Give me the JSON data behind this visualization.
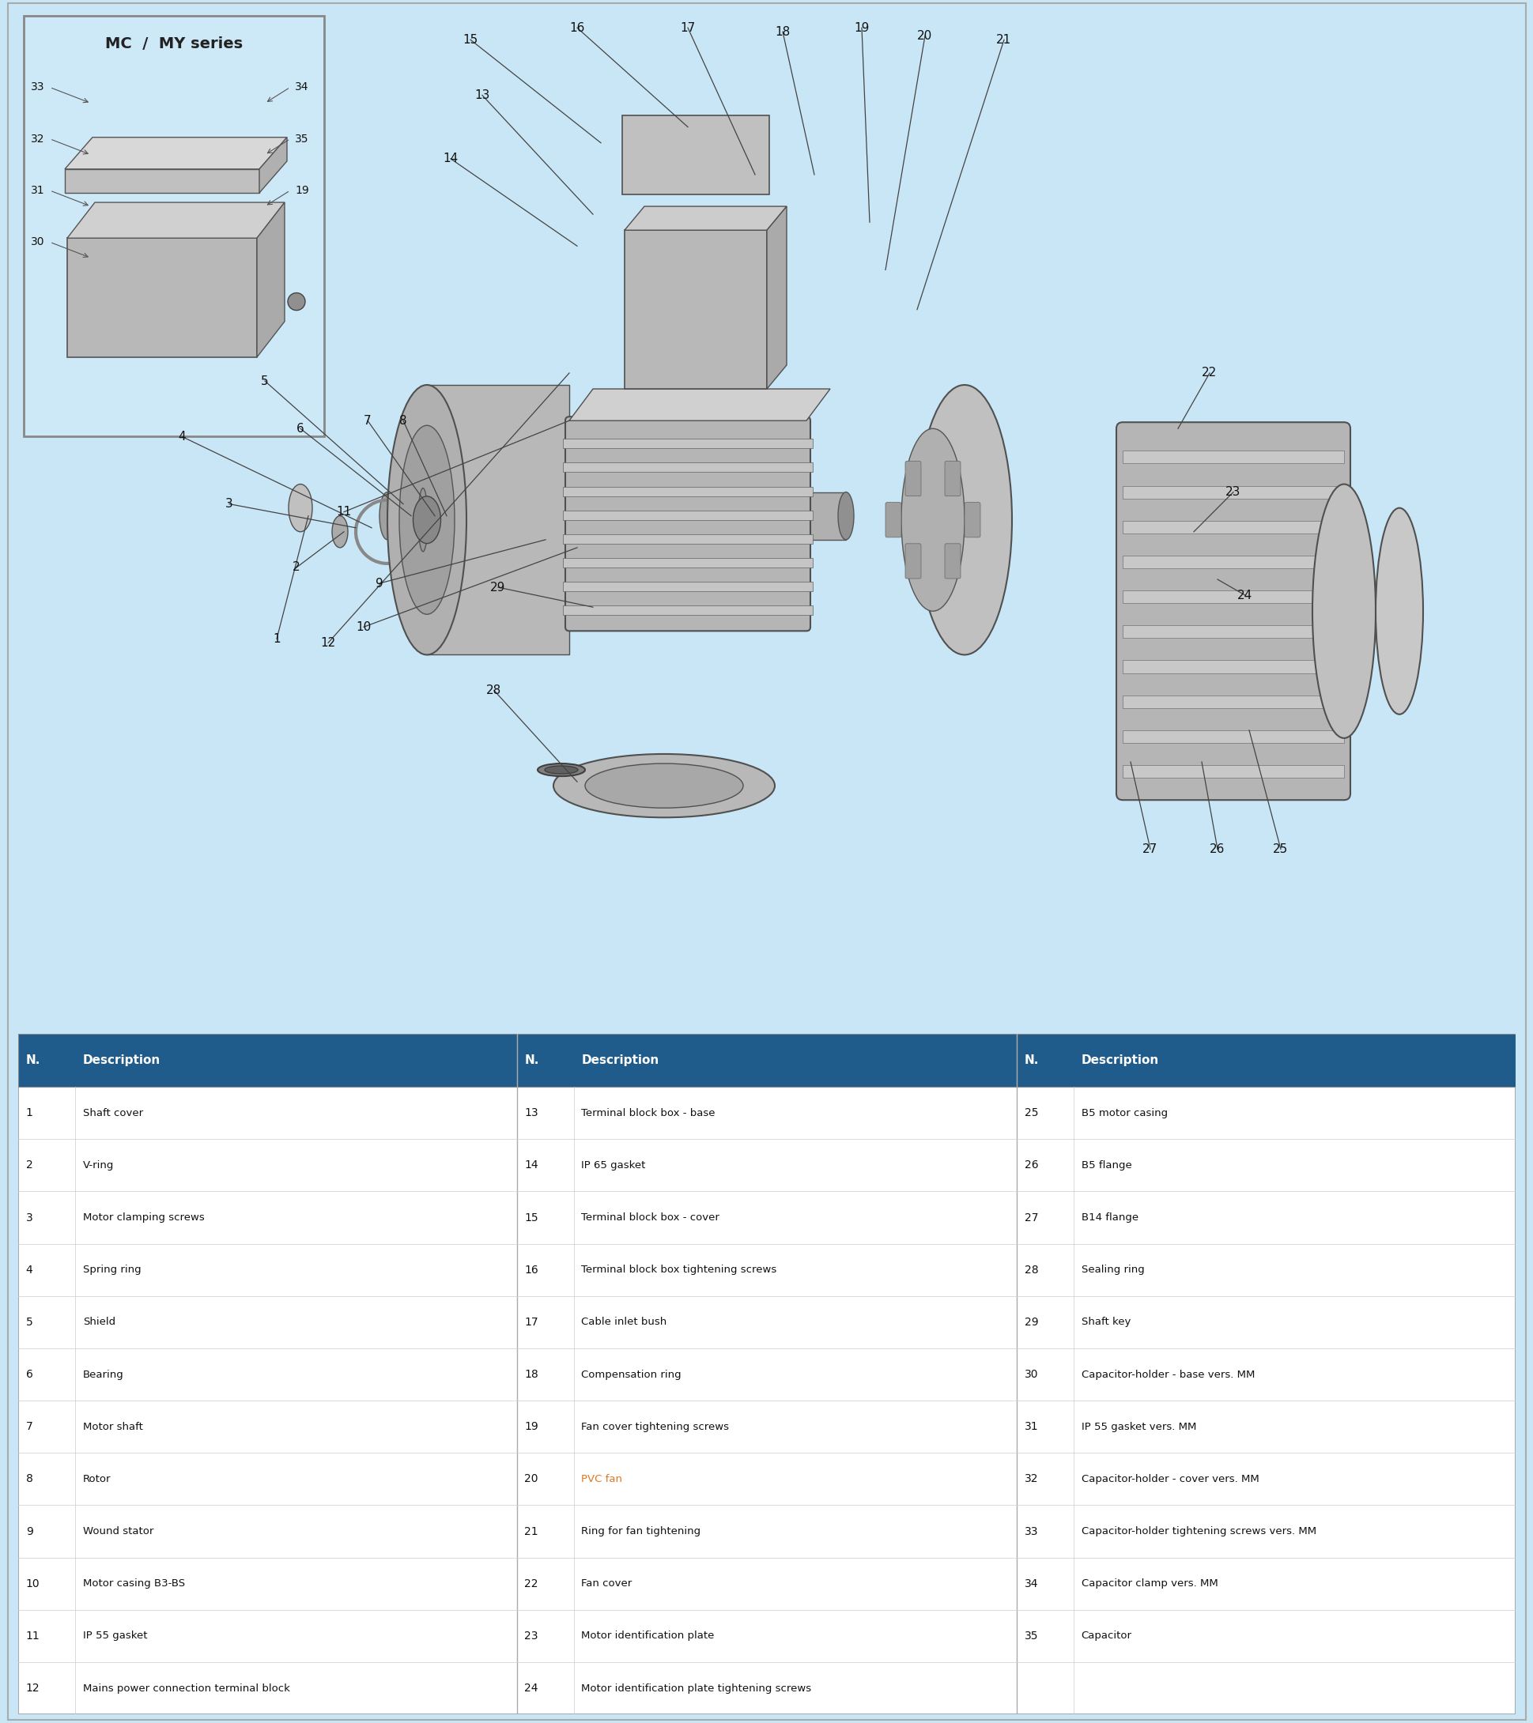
{
  "bg_color": "#c8e6f5",
  "table_header_color": "#1f5c8b",
  "table_header_text": "#ffffff",
  "table_border_color": "#aaaaaa",
  "inset_title": "MC  /  MY series",
  "inset_border": "#888888",
  "parts_col1": [
    {
      "n": "1",
      "desc": "Shaft cover"
    },
    {
      "n": "2",
      "desc": "V-ring"
    },
    {
      "n": "3",
      "desc": "Motor clamping screws"
    },
    {
      "n": "4",
      "desc": "Spring ring"
    },
    {
      "n": "5",
      "desc": "Shield"
    },
    {
      "n": "6",
      "desc": "Bearing"
    },
    {
      "n": "7",
      "desc": "Motor shaft"
    },
    {
      "n": "8",
      "desc": "Rotor"
    },
    {
      "n": "9",
      "desc": "Wound stator"
    },
    {
      "n": "10",
      "desc": "Motor casing B3-BS"
    },
    {
      "n": "11",
      "desc": "IP 55 gasket"
    },
    {
      "n": "12",
      "desc": "Mains power connection terminal block"
    }
  ],
  "parts_col2": [
    {
      "n": "13",
      "desc": "Terminal block box - base"
    },
    {
      "n": "14",
      "desc": "IP 65 gasket"
    },
    {
      "n": "15",
      "desc": "Terminal block box - cover"
    },
    {
      "n": "16",
      "desc": "Terminal block box tightening screws"
    },
    {
      "n": "17",
      "desc": "Cable inlet bush"
    },
    {
      "n": "18",
      "desc": "Compensation ring"
    },
    {
      "n": "19",
      "desc": "Fan cover tightening screws",
      "highlight": true
    },
    {
      "n": "20",
      "desc": "PVC fan",
      "highlight": true,
      "color": "#e07820"
    },
    {
      "n": "21",
      "desc": "Ring for fan tightening"
    },
    {
      "n": "22",
      "desc": "Fan cover"
    },
    {
      "n": "23",
      "desc": "Motor identification plate"
    },
    {
      "n": "24",
      "desc": "Motor identification plate tightening screws"
    }
  ],
  "parts_col3": [
    {
      "n": "25",
      "desc": "B5 motor casing"
    },
    {
      "n": "26",
      "desc": "B5 flange"
    },
    {
      "n": "27",
      "desc": "B14 flange"
    },
    {
      "n": "28",
      "desc": "Sealing ring"
    },
    {
      "n": "29",
      "desc": "Shaft key"
    },
    {
      "n": "30",
      "desc": "Capacitor-holder - base vers. MM"
    },
    {
      "n": "31",
      "desc": "IP 55 gasket vers. MM"
    },
    {
      "n": "32",
      "desc": "Capacitor-holder - cover vers. MM"
    },
    {
      "n": "33",
      "desc": "Capacitor-holder tightening screws vers. MM"
    },
    {
      "n": "34",
      "desc": "Capacitor clamp vers. MM"
    },
    {
      "n": "35",
      "desc": "Capacitor"
    }
  ],
  "motor_color_light": "#c8c8c8",
  "motor_color_mid": "#a8a8a8",
  "motor_color_dark": "#888888",
  "motor_color_shadow": "#707070"
}
